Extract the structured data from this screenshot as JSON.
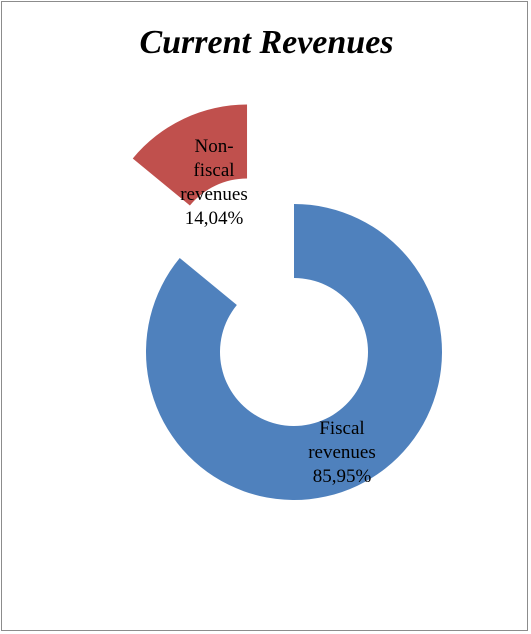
{
  "chart_data": {
    "type": "donut",
    "title": "Current Revenues",
    "categories": [
      "Fiscal revenues",
      "Non-fiscal revenues"
    ],
    "values": [
      85.95,
      14.04
    ],
    "value_labels": [
      "85,95%",
      "14,04%"
    ],
    "label_lines": [
      [
        "Fiscal",
        "revenues",
        "85,95%"
      ],
      [
        "Non-",
        "fiscal",
        "revenues",
        "14,04%"
      ]
    ],
    "exploded": [
      false,
      true
    ],
    "colors": [
      "#4f81bd",
      "#c0504d"
    ],
    "legend": "none"
  }
}
